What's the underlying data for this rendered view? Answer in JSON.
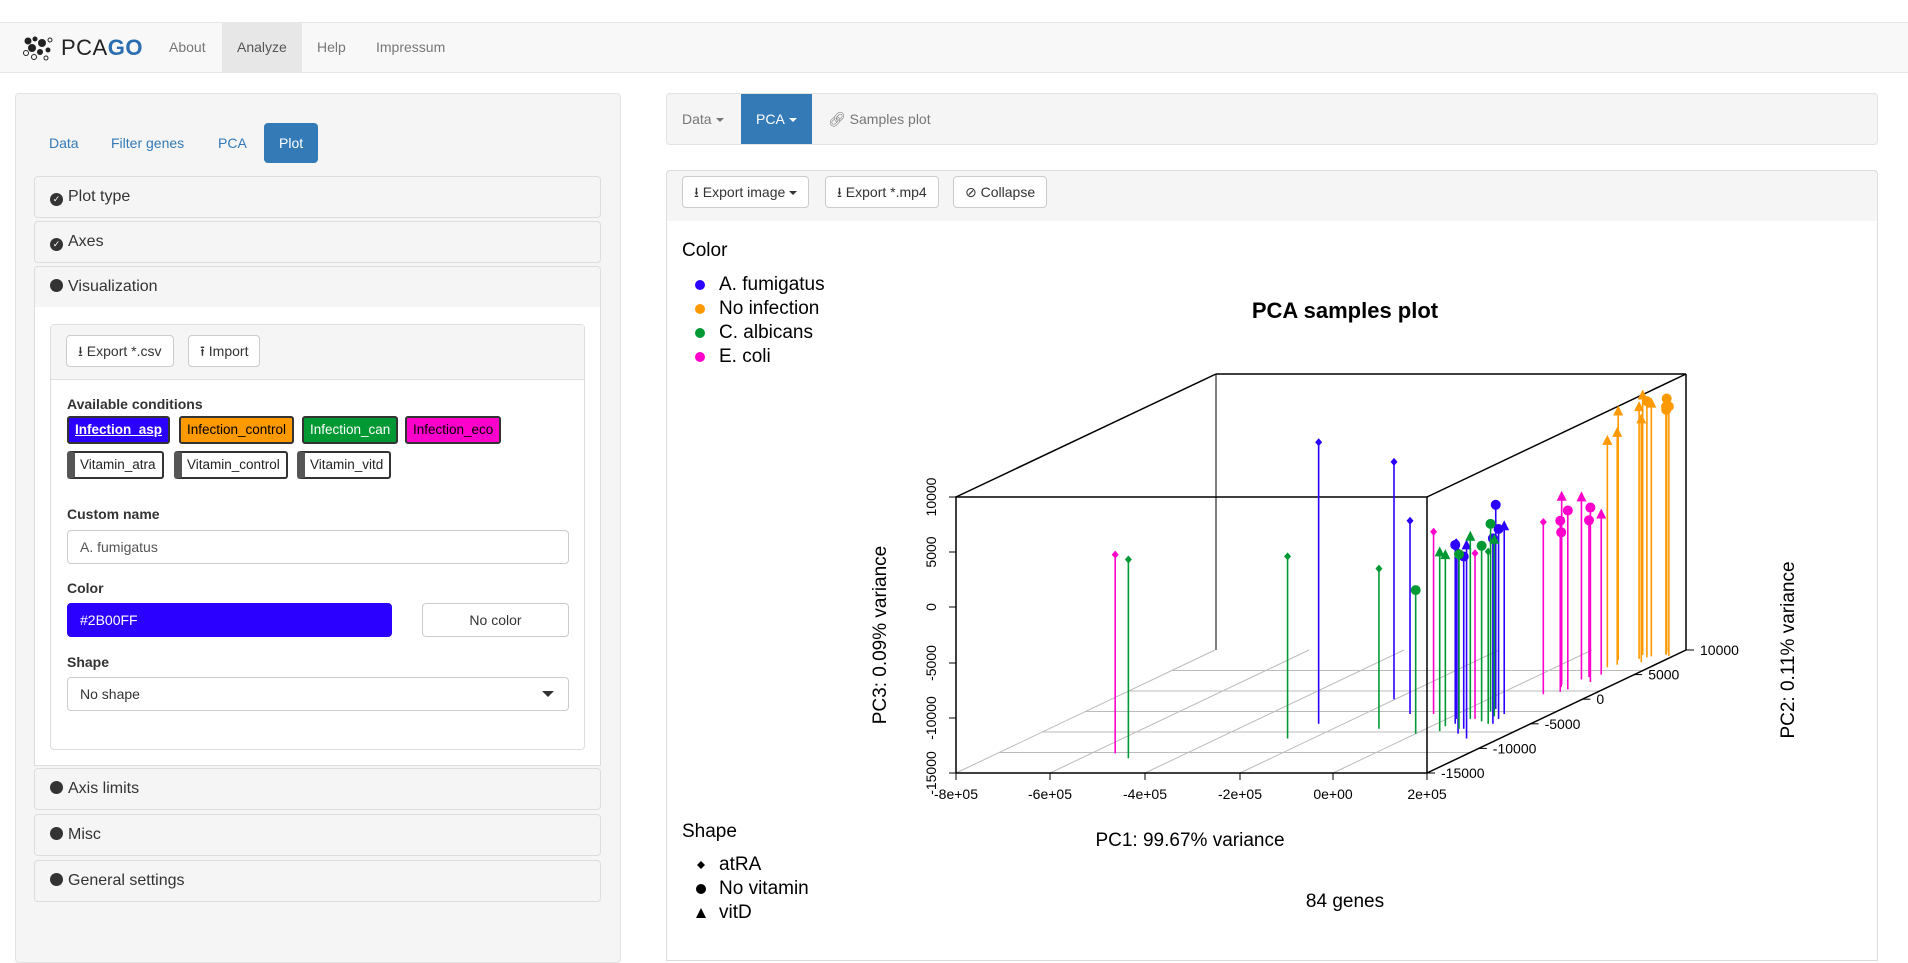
{
  "app": {
    "brand_prefix": "PCA",
    "brand_suffix": "GO",
    "nav": [
      "About",
      "Analyze",
      "Help",
      "Impressum"
    ]
  },
  "left": {
    "tabs": [
      "Data",
      "Filter genes",
      "PCA",
      "Plot"
    ],
    "sections": {
      "plot_type": "Plot type",
      "axes": "Axes",
      "visualization": "Visualization",
      "axis_limits": "Axis limits",
      "misc": "Misc",
      "general": "General settings"
    },
    "export_csv": "Export *.csv",
    "import": "Import",
    "available_conditions": "Available conditions",
    "conditions": [
      {
        "label": "Infection_asp",
        "bg": "#2B00FF",
        "fg": "#ffffff"
      },
      {
        "label": "Infection_control",
        "bg": "#FF9900",
        "fg": "#000000"
      },
      {
        "label": "Infection_can",
        "bg": "#009933",
        "fg": "#ffffff"
      },
      {
        "label": "Infection_eco",
        "bg": "#FF00CC",
        "fg": "#000000"
      },
      {
        "label": "Vitamin_atra",
        "bg": "#ffffff",
        "fg": "#000000"
      },
      {
        "label": "Vitamin_control",
        "bg": "#ffffff",
        "fg": "#000000"
      },
      {
        "label": "Vitamin_vitd",
        "bg": "#ffffff",
        "fg": "#000000"
      }
    ],
    "custom_name_label": "Custom name",
    "custom_name_value": "A. fumigatus",
    "color_label": "Color",
    "color_value": "#2B00FF",
    "no_color": "No color",
    "shape_label": "Shape",
    "shape_value": "No shape"
  },
  "right": {
    "tabs": [
      "Data",
      "PCA",
      "Samples plot"
    ],
    "export_image": "Export image",
    "export_mp4": "Export *.mp4",
    "collapse": "Collapse",
    "legend_color_title": "Color",
    "legend_colors": [
      {
        "label": "A. fumigatus",
        "color": "#2B00FF"
      },
      {
        "label": "No infection",
        "color": "#FF9900"
      },
      {
        "label": "C. albicans",
        "color": "#009933"
      },
      {
        "label": "E. coli",
        "color": "#FF00CC"
      }
    ],
    "legend_shape_title": "Shape",
    "legend_shapes": [
      {
        "label": "atRA",
        "shape": "diamond"
      },
      {
        "label": "No vitamin",
        "shape": "circle"
      },
      {
        "label": "vitD",
        "shape": "triangle"
      }
    ]
  },
  "chart_data": {
    "type": "scatter",
    "title": "PCA samples plot",
    "subtitle": "84 genes",
    "xlabel": "PC1: 99.67% variance",
    "ylabel": "PC2: 0.11% variance",
    "zlabel": "PC3: 0.09% variance",
    "x_ticks": [
      "-8e+05",
      "-6e+05",
      "-4e+05",
      "-2e+05",
      "0e+00",
      "2e+05"
    ],
    "y_ticks": [
      "-15000",
      "-10000",
      "-5000",
      "0",
      "5000",
      "10000"
    ],
    "z_ticks": [
      "-15000",
      "-10000",
      "-5000",
      "0",
      "5000",
      "10000"
    ],
    "xlim": [
      -800000,
      200000
    ],
    "ylim": [
      -15000,
      10000
    ],
    "zlim": [
      -15000,
      10000
    ],
    "series": [
      {
        "name": "A. fumigatus",
        "color": "#2B00FF",
        "points": [
          [
            -250000,
            -5000,
            10500,
            "diamond"
          ],
          [
            -200000,
            0,
            6500,
            "diamond"
          ],
          [
            -100000,
            -3000,
            2500,
            "diamond"
          ],
          [
            20000,
            -4000,
            1000,
            "diamond"
          ],
          [
            40000,
            -5000,
            1200,
            "circle"
          ],
          [
            60000,
            -2000,
            3500,
            "circle"
          ],
          [
            80000,
            -6000,
            600,
            "circle"
          ],
          [
            100000,
            -3000,
            2000,
            "triangle"
          ],
          [
            130000,
            -8000,
            2500,
            "triangle"
          ],
          [
            120000,
            -5000,
            1800,
            "circle"
          ],
          [
            90000,
            -7000,
            1500,
            "diamond"
          ],
          [
            110000,
            -4000,
            2200,
            "circle"
          ]
        ]
      },
      {
        "name": "No infection",
        "color": "#FF9900",
        "points": [
          [
            100000,
            8000,
            7500,
            "triangle"
          ],
          [
            130000,
            9000,
            8500,
            "triangle"
          ],
          [
            150000,
            8500,
            8200,
            "circle"
          ],
          [
            170000,
            9500,
            8000,
            "circle"
          ],
          [
            180000,
            9000,
            7200,
            "circle"
          ],
          [
            160000,
            7500,
            7000,
            "triangle"
          ],
          [
            140000,
            8200,
            7800,
            "triangle"
          ],
          [
            190000,
            8800,
            7600,
            "circle"
          ],
          [
            120000,
            7000,
            6000,
            "triangle"
          ],
          [
            175000,
            9200,
            7400,
            "circle"
          ],
          [
            155000,
            8700,
            7900,
            "triangle"
          ],
          [
            110000,
            6500,
            5500,
            "triangle"
          ]
        ]
      },
      {
        "name": "C. albicans",
        "color": "#009933",
        "points": [
          [
            -500000,
            -12000,
            3000,
            "diamond"
          ],
          [
            -250000,
            -8000,
            1500,
            "diamond"
          ],
          [
            -100000,
            -6000,
            -500,
            "diamond"
          ],
          [
            0,
            -7000,
            -2000,
            "circle"
          ],
          [
            30000,
            -5500,
            500,
            "triangle"
          ],
          [
            50000,
            -4000,
            1500,
            "triangle"
          ],
          [
            70000,
            -6000,
            800,
            "circle"
          ],
          [
            90000,
            -3500,
            1000,
            "triangle"
          ],
          [
            110000,
            -5000,
            600,
            "diamond"
          ],
          [
            60000,
            -2500,
            2000,
            "circle"
          ],
          [
            85000,
            -4500,
            900,
            "circle"
          ],
          [
            40000,
            -6500,
            1200,
            "triangle"
          ]
        ]
      },
      {
        "name": "E. coli",
        "color": "#FF00CC",
        "points": [
          [
            -550000,
            -11000,
            3000,
            "diamond"
          ],
          [
            -50000,
            -3000,
            1500,
            "diamond"
          ],
          [
            60000,
            -4000,
            0,
            "diamond"
          ],
          [
            90000,
            3000,
            2000,
            "triangle"
          ],
          [
            100000,
            2500,
            -1000,
            "circle"
          ],
          [
            110000,
            4000,
            1500,
            "triangle"
          ],
          [
            120000,
            1500,
            500,
            "circle"
          ],
          [
            130000,
            5000,
            -500,
            "triangle"
          ],
          [
            140000,
            3500,
            800,
            "circle"
          ],
          [
            115000,
            4500,
            -800,
            "circle"
          ],
          [
            125000,
            2000,
            1200,
            "circle"
          ],
          [
            95000,
            1000,
            600,
            "diamond"
          ]
        ]
      }
    ]
  }
}
